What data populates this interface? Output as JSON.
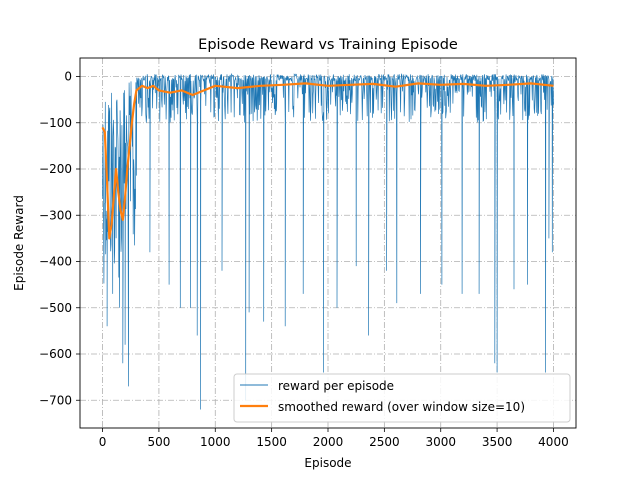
{
  "chart_data": {
    "type": "line",
    "title": "Episode Reward vs Training Episode",
    "xlabel": "Episode",
    "ylabel": "Episode Reward",
    "xlim": [
      -200,
      4200
    ],
    "ylim": [
      -760,
      40
    ],
    "xticks": [
      0,
      500,
      1000,
      1500,
      2000,
      2500,
      3000,
      3500,
      4000
    ],
    "yticks": [
      0,
      -100,
      -200,
      -300,
      -400,
      -500,
      -600,
      -700
    ],
    "grid": true,
    "grid_style": "dash-dot",
    "legend_position": "lower-right",
    "series": [
      {
        "name": "reward per episode",
        "color": "#1f77b4",
        "style": "thin-line",
        "summary": {
          "x_range": [
            0,
            4000
          ],
          "upper_envelope": 5,
          "typical_band": [
            -100,
            5
          ],
          "early_phase_x": [
            0,
            300
          ],
          "early_phase_band": [
            -450,
            -10
          ]
        },
        "spikes": [
          {
            "x": 40,
            "y": -540
          },
          {
            "x": 90,
            "y": -470
          },
          {
            "x": 150,
            "y": -500
          },
          {
            "x": 180,
            "y": -620
          },
          {
            "x": 200,
            "y": -580
          },
          {
            "x": 230,
            "y": -670
          },
          {
            "x": 420,
            "y": -380
          },
          {
            "x": 590,
            "y": -450
          },
          {
            "x": 690,
            "y": -500
          },
          {
            "x": 780,
            "y": -500
          },
          {
            "x": 840,
            "y": -560
          },
          {
            "x": 870,
            "y": -720
          },
          {
            "x": 1060,
            "y": -420
          },
          {
            "x": 1270,
            "y": -700
          },
          {
            "x": 1300,
            "y": -510
          },
          {
            "x": 1430,
            "y": -530
          },
          {
            "x": 1620,
            "y": -540
          },
          {
            "x": 1780,
            "y": -470
          },
          {
            "x": 1960,
            "y": -640
          },
          {
            "x": 2080,
            "y": -500
          },
          {
            "x": 2250,
            "y": -410
          },
          {
            "x": 2360,
            "y": -560
          },
          {
            "x": 2520,
            "y": -420
          },
          {
            "x": 2610,
            "y": -490
          },
          {
            "x": 2820,
            "y": -470
          },
          {
            "x": 3010,
            "y": -450
          },
          {
            "x": 3190,
            "y": -470
          },
          {
            "x": 3340,
            "y": -470
          },
          {
            "x": 3480,
            "y": -620
          },
          {
            "x": 3500,
            "y": -640
          },
          {
            "x": 3650,
            "y": -460
          },
          {
            "x": 3770,
            "y": -450
          },
          {
            "x": 3930,
            "y": -640
          },
          {
            "x": 3960,
            "y": -350
          },
          {
            "x": 3990,
            "y": -380
          }
        ]
      },
      {
        "name": "smoothed reward (over window size=10)",
        "color": "#ff7f0e",
        "style": "thick-line",
        "x": [
          0,
          20,
          40,
          60,
          80,
          100,
          120,
          140,
          160,
          180,
          200,
          220,
          240,
          260,
          280,
          300,
          350,
          400,
          450,
          500,
          600,
          700,
          800,
          900,
          1000,
          1200,
          1400,
          1600,
          1800,
          2000,
          2200,
          2400,
          2600,
          2800,
          3000,
          3200,
          3400,
          3600,
          3800,
          4000
        ],
        "y": [
          -110,
          -120,
          -230,
          -350,
          -320,
          -260,
          -200,
          -250,
          -290,
          -310,
          -260,
          -200,
          -150,
          -100,
          -60,
          -30,
          -20,
          -25,
          -20,
          -30,
          -35,
          -30,
          -40,
          -30,
          -20,
          -25,
          -20,
          -18,
          -15,
          -20,
          -18,
          -16,
          -22,
          -15,
          -18,
          -16,
          -20,
          -18,
          -15,
          -20
        ]
      }
    ]
  }
}
